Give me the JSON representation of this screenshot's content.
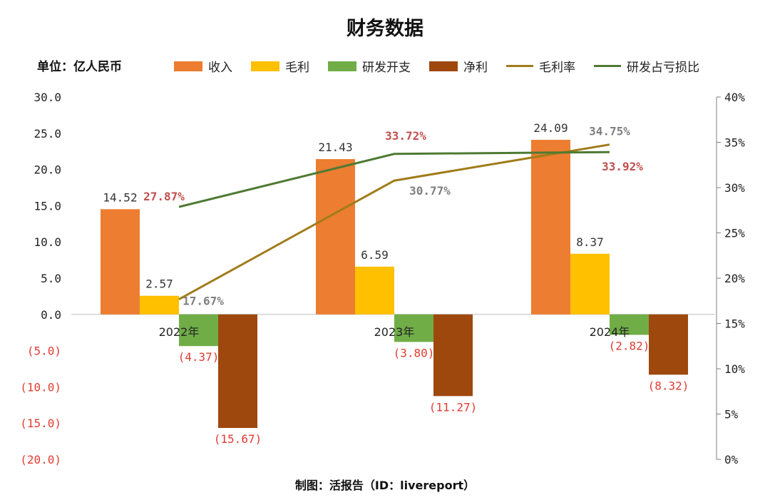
{
  "chart_data": {
    "type": "bar",
    "title": "财务数据",
    "unit_label": "单位：亿人民币",
    "footer": "制图：活报告（ID：livereport）",
    "categories": [
      "2022年",
      "2023年",
      "2024年"
    ],
    "y_left_ticks": [
      "30.0",
      "25.0",
      "20.0",
      "15.0",
      "10.0",
      "5.0",
      "0.0",
      "(5.0)",
      "(10.0)",
      "(15.0)",
      "(20.0)"
    ],
    "y_left_range": [
      -20,
      30
    ],
    "y_right_ticks": [
      "40%",
      "35%",
      "30%",
      "25%",
      "20%",
      "15%",
      "10%",
      "5%",
      "0%"
    ],
    "y_right_range": [
      0,
      40
    ],
    "series": [
      {
        "name": "收入",
        "kind": "bar",
        "color": "#ED7D31",
        "values": [
          14.52,
          21.43,
          24.09
        ],
        "labels": [
          "14.52",
          "21.43",
          "24.09"
        ]
      },
      {
        "name": "毛利",
        "kind": "bar",
        "color": "#FFC000",
        "values": [
          2.57,
          6.59,
          8.37
        ],
        "labels": [
          "2.57",
          "6.59",
          "8.37"
        ]
      },
      {
        "name": "研发开支",
        "kind": "bar",
        "color": "#70AD47",
        "values": [
          -4.37,
          -3.8,
          -2.82
        ],
        "labels": [
          "(4.37)",
          "(3.80)",
          "(2.82)"
        ]
      },
      {
        "name": "净利",
        "kind": "bar",
        "color": "#9E480E",
        "values": [
          -15.67,
          -11.27,
          -8.32
        ],
        "labels": [
          "(15.67)",
          "(11.27)",
          "(8.32)"
        ]
      },
      {
        "name": "毛利率",
        "kind": "line",
        "axis": "right",
        "color": "#A07C1A",
        "values": [
          17.67,
          30.77,
          34.75
        ],
        "labels": [
          "17.67%",
          "30.77%",
          "34.75%"
        ]
      },
      {
        "name": "研发占亏损比",
        "kind": "line",
        "axis": "right",
        "color": "#4E7A33",
        "values": [
          27.87,
          33.72,
          33.92
        ],
        "labels": [
          "27.87%",
          "33.72%",
          "33.92%"
        ]
      }
    ],
    "colors": {
      "negative_text": "#E03C31",
      "pct_red": "#C0504D",
      "pct_gray": "#7F7F7F",
      "axis": "#BFBFBF"
    }
  }
}
